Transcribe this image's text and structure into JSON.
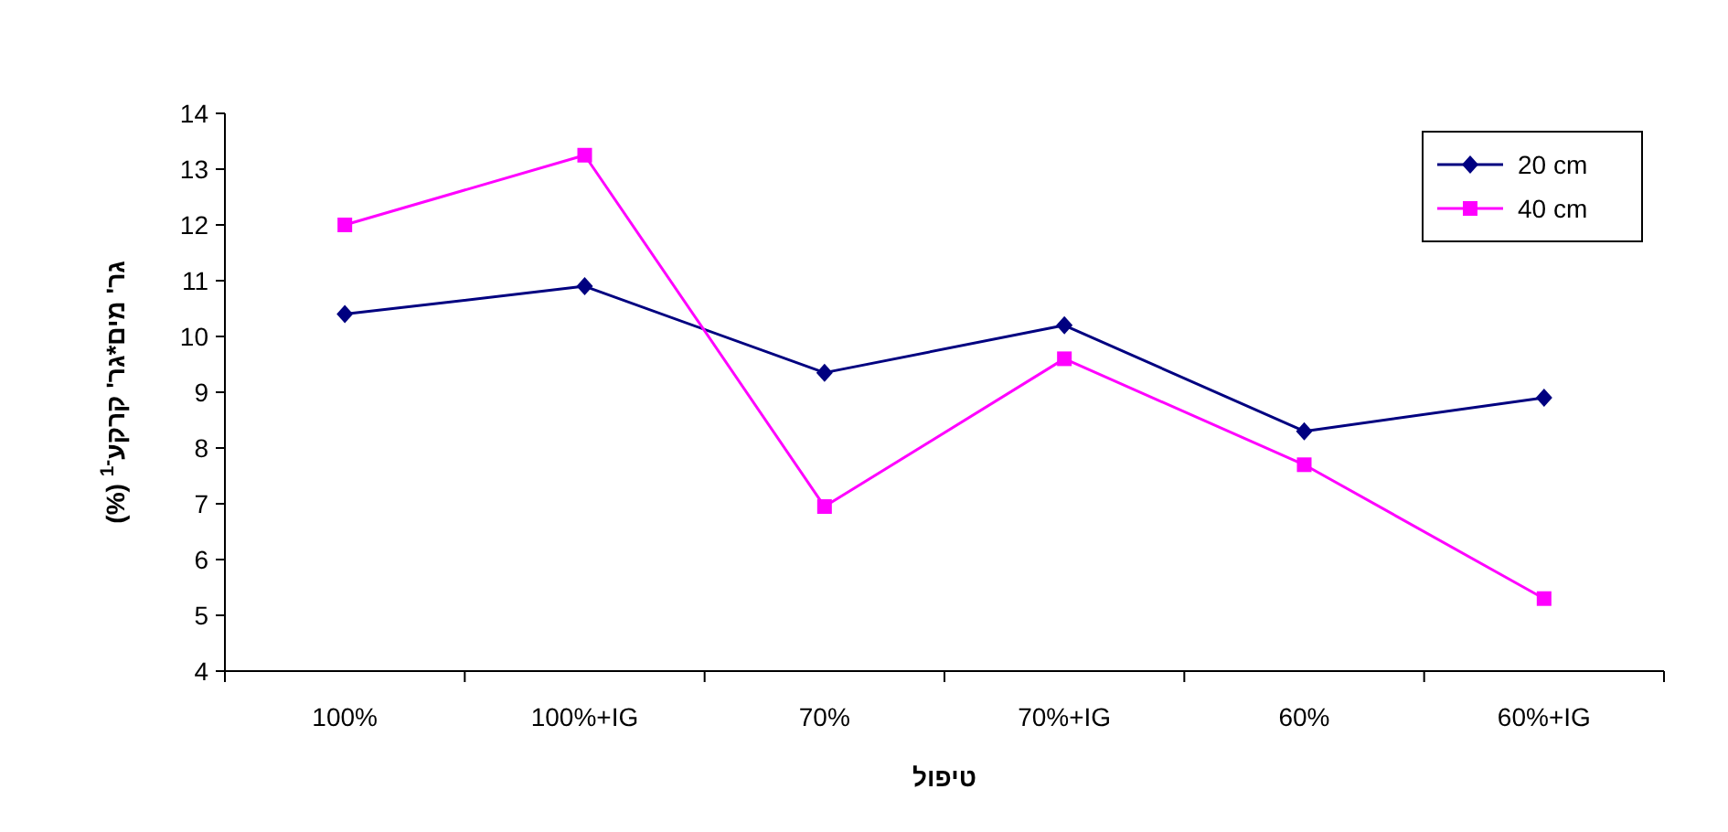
{
  "chart_data": {
    "type": "line",
    "xlabel": "טיפול",
    "ylabel": "גר' מים*גר' קרקע$^{-1}$ (%)",
    "categories": [
      "100%",
      "100%+IG",
      "70%",
      "70%+IG",
      "60%",
      "60%+IG"
    ],
    "series": [
      {
        "name": "20 cm",
        "color": "#000080",
        "marker": "diamond",
        "values": [
          10.4,
          10.9,
          9.35,
          10.2,
          8.3,
          8.9
        ]
      },
      {
        "name": "40 cm",
        "color": "#ff00ff",
        "marker": "square",
        "values": [
          12.0,
          13.25,
          6.95,
          9.6,
          7.7,
          5.3
        ]
      }
    ],
    "ylim": [
      4,
      14
    ],
    "yticks": [
      4,
      5,
      6,
      7,
      8,
      9,
      10,
      11,
      12,
      13,
      14
    ],
    "grid": false,
    "legend": "top right",
    "line_style": "solid"
  }
}
